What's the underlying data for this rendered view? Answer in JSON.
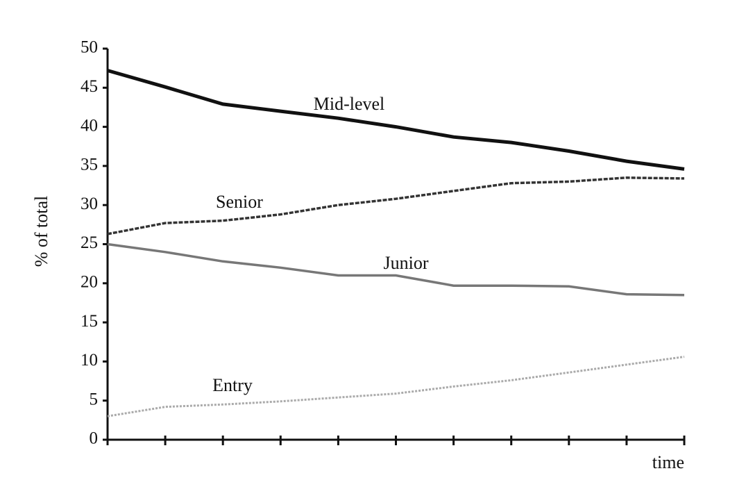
{
  "chart_data": {
    "type": "line",
    "y_label": "% of total",
    "x_label": "time",
    "categories": [
      null,
      null,
      null,
      null,
      null,
      null,
      null,
      null,
      null,
      null,
      null
    ],
    "ylim": [
      0,
      50
    ],
    "yticks": [
      0,
      5,
      10,
      15,
      20,
      25,
      30,
      35,
      40,
      45,
      50
    ],
    "series": [
      {
        "name": "Mid-level",
        "color": "#111111",
        "values": [
          47.2,
          45.1,
          42.9,
          42.0,
          41.1,
          40.0,
          38.7,
          38.0,
          36.9,
          35.6,
          34.6
        ]
      },
      {
        "name": "Senior",
        "color": "#333333",
        "values": [
          26.3,
          27.7,
          28.0,
          28.8,
          30.0,
          30.8,
          31.8,
          32.8,
          33.0,
          33.5,
          33.4
        ]
      },
      {
        "name": "Junior",
        "color": "#777777",
        "values": [
          25.0,
          24.0,
          22.8,
          22.0,
          21.0,
          21.0,
          19.7,
          19.7,
          19.6,
          18.6,
          18.5
        ]
      },
      {
        "name": "Entry",
        "color": "#aaaaaa",
        "values": [
          3.0,
          4.2,
          4.5,
          4.9,
          5.4,
          5.9,
          6.8,
          7.6,
          8.6,
          9.6,
          10.6
        ]
      }
    ]
  }
}
